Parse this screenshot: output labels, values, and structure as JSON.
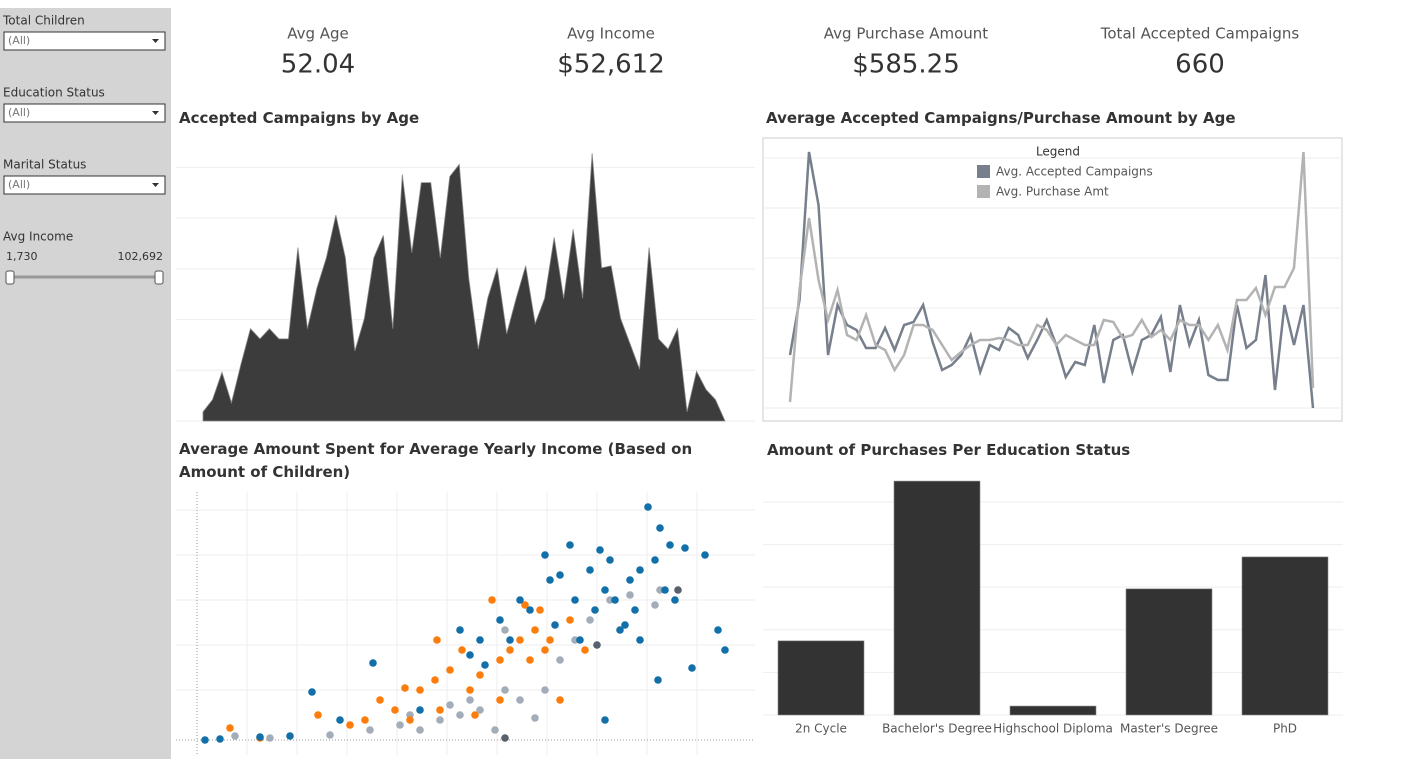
{
  "filters": [
    {
      "label": "Total Children",
      "value": "(All)"
    },
    {
      "label": "Education Status",
      "value": "(All)"
    },
    {
      "label": "Marital Status",
      "value": "(All)"
    }
  ],
  "slider": {
    "label": "Avg Income",
    "min": "1,730",
    "max": "102,692"
  },
  "kpis": [
    {
      "label": "Avg Age",
      "value": "52.04"
    },
    {
      "label": "Avg Income",
      "value": "$52,612"
    },
    {
      "label": "Avg Purchase Amount",
      "value": "$585.25"
    },
    {
      "label": "Total Accepted Campaigns",
      "value": "660"
    }
  ],
  "chart_data": [
    {
      "type": "area",
      "title": "Accepted Campaigns by Age",
      "color": "#3c3c3c",
      "grid": true,
      "ylim": [
        0,
        28
      ],
      "yticks": [
        0,
        5,
        10,
        15,
        20,
        25
      ],
      "values": [
        0.9,
        2.1,
        4.8,
        1.8,
        5.6,
        9.1,
        8.1,
        9.1,
        8.1,
        8.1,
        17.1,
        9.1,
        13.1,
        16.1,
        20.3,
        16.1,
        6.9,
        10.1,
        16.1,
        18.3,
        9.1,
        24.3,
        16.6,
        23.5,
        23.5,
        16.1,
        24.1,
        25.3,
        14.1,
        7.1,
        12.1,
        15.1,
        8.6,
        12.1,
        15.3,
        9.6,
        12.1,
        18.1,
        12.1,
        18.9,
        12.1,
        26.4,
        15.1,
        15.3,
        10.1,
        7.6,
        5.1,
        17.1,
        8.1,
        7.1,
        9.1,
        0.9,
        4.9,
        3.1,
        2.1,
        0
      ]
    },
    {
      "type": "line",
      "title": "Average Accepted Campaigns/Purchase Amount by Age",
      "legend_title": "Legend",
      "grid": true,
      "ylim": [
        -0.26,
        5.4
      ],
      "yticks": [
        0,
        1,
        2,
        3,
        4,
        5
      ],
      "series": [
        {
          "name": "Avg. Accepted Campaigns",
          "color": "#767f8b",
          "values": [
            1.06,
            2.16,
            5.12,
            4.06,
            1.06,
            2.06,
            1.66,
            1.56,
            1.2,
            1.2,
            1.6,
            1.16,
            1.66,
            1.72,
            2.06,
            1.32,
            0.76,
            0.86,
            1.06,
            1.46,
            0.72,
            1.26,
            1.16,
            1.6,
            1.46,
            1,
            1.36,
            1.76,
            1.26,
            0.62,
            0.92,
            0.86,
            1.66,
            0.5,
            1.36,
            1.46,
            0.72,
            1.36,
            1.46,
            1.82,
            0.72,
            2.06,
            1.26,
            1.76,
            0.66,
            0.56,
            0.56,
            2.06,
            1.2,
            1.36,
            2.66,
            0.36,
            2.06,
            1.26,
            2.06,
            0
          ]
        },
        {
          "name": "Avg. Purchase Amt",
          "color": "#b3b3b3",
          "values": [
            0.12,
            2.36,
            3.8,
            2.56,
            1.76,
            2.36,
            1.46,
            1.36,
            1.86,
            1.26,
            1.16,
            0.76,
            1.06,
            1.66,
            1.66,
            1.56,
            1.26,
            0.96,
            1.12,
            1.26,
            1.36,
            1.36,
            1.4,
            1.36,
            1.26,
            1.26,
            1.66,
            1.56,
            1.26,
            1.46,
            1.36,
            1.26,
            1.26,
            1.76,
            1.72,
            1.4,
            1.46,
            1.76,
            1.42,
            1.56,
            1.36,
            1.76,
            1.66,
            1.66,
            1.36,
            1.66,
            1.16,
            2.16,
            2.16,
            2.4,
            1.86,
            2.42,
            2.42,
            2.8,
            5.12,
            0.4
          ]
        }
      ]
    },
    {
      "type": "scatter",
      "title": "Average Amount Spent for Average Yearly Income (Based on Amount of Children)",
      "grid": true,
      "xlim": [
        0,
        112
      ],
      "ylim": [
        0,
        50
      ],
      "xticks": [
        10,
        20,
        30,
        40,
        50,
        60,
        70,
        80,
        90,
        100
      ],
      "yticks": [
        10,
        19,
        28,
        37,
        46
      ],
      "series": [
        {
          "color": "#a3acb9",
          "x": [
            7.6,
            14.6,
            26.6,
            34.6,
            40.6,
            44.6,
            48.6,
            52.6,
            56.6,
            59.6,
            61.6,
            64.6,
            67.6,
            69.6,
            72.6,
            75.6,
            78.6,
            82.6,
            86.6,
            91.6,
            92.6,
            61.6,
            54.6,
            50.6,
            42.6
          ],
          "values": [
            0.8,
            0.4,
            1,
            2,
            3,
            2,
            4,
            5,
            6,
            2,
            10,
            8,
            4.4,
            10,
            16,
            20,
            24,
            28,
            29,
            27,
            30,
            22,
            8,
            7,
            5
          ]
        },
        {
          "color": "#fc7d0b",
          "x": [
            6.6,
            12.6,
            24.2,
            30.6,
            33.6,
            36.6,
            39.6,
            41.6,
            44.6,
            47.6,
            48,
            50.6,
            53,
            54.6,
            56.6,
            59,
            60.6,
            62.6,
            64.6,
            65.6,
            67.6,
            68.6,
            70.6,
            72.6,
            74.6,
            77.6,
            48.6,
            42.6,
            55.6,
            60.6,
            66.6,
            69.6
          ],
          "values": [
            2.4,
            0.4,
            5,
            3,
            4,
            8,
            6,
            10.4,
            10,
            12,
            20,
            14,
            18,
            10,
            13,
            28,
            16,
            18,
            20,
            27,
            22,
            26,
            20,
            8,
            24,
            18,
            6,
            4,
            5,
            8,
            16,
            18
          ]
        },
        {
          "color": "#1170aa",
          "x": [
            1.6,
            4.6,
            12.6,
            18.6,
            23,
            28.6,
            35.2,
            44.6,
            52.6,
            54.6,
            56.6,
            60.6,
            62.6,
            64.6,
            66.6,
            69.6,
            72.6,
            74.6,
            75.6,
            78.6,
            80.6,
            81.6,
            83.6,
            84.6,
            86.6,
            87.6,
            88.6,
            90.2,
            91.6,
            92.6,
            93.6,
            94.6,
            95.6,
            97.6,
            99,
            101.6,
            104.2,
            105.6,
            92.2,
            81.6,
            70.6,
            79.6,
            76.6,
            88.6,
            82.6,
            85.6,
            71.6,
            57.6
          ],
          "values": [
            0,
            0.2,
            0.6,
            0.8,
            9.6,
            4,
            15.4,
            6,
            22,
            17,
            20,
            24,
            20,
            28,
            26,
            37,
            33,
            39,
            28,
            34,
            38,
            30,
            28,
            22,
            32,
            26,
            20,
            46.6,
            36,
            42.4,
            30,
            39,
            28,
            38.4,
            14.4,
            37,
            22,
            18,
            12,
            4,
            32,
            26,
            20,
            34,
            36,
            23,
            23,
            15
          ]
        },
        {
          "color": "#57606c",
          "x": [
            61.6,
            96.2,
            80
          ],
          "values": [
            0.4,
            30,
            19
          ]
        }
      ]
    },
    {
      "type": "bar",
      "title": "Amount of Purchases Per Education Status",
      "color": "#333333",
      "grid": true,
      "categories": [
        "2n Cycle",
        "Bachelor's Degree",
        "Highschool Diploma",
        "Master's Degree",
        "PhD"
      ],
      "values": [
        174,
        549,
        21,
        296,
        371
      ],
      "ylim": [
        0,
        575
      ],
      "yticks": [
        0,
        100,
        200,
        300,
        400,
        500
      ]
    }
  ]
}
